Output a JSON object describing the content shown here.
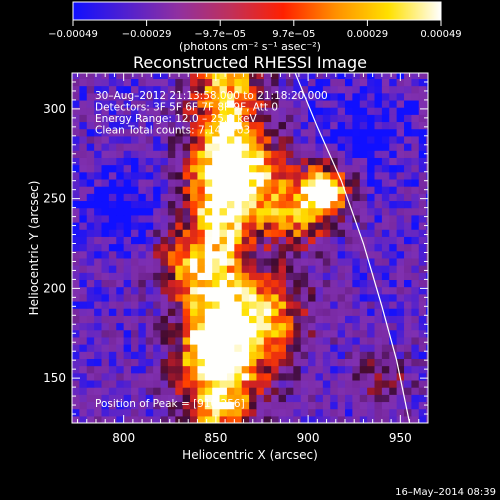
{
  "colorbar": {
    "ticks": [
      "−0.00049",
      "−0.00029",
      "−9.7e−05",
      "9.7e−05",
      "0.00029",
      "0.00049"
    ],
    "unit_label": "(photons cm⁻² s⁻¹ asec⁻²)",
    "colors": [
      "#1010ff",
      "#5020d0",
      "#9030a0",
      "#c0305a",
      "#ff2000",
      "#ff9000",
      "#ffe000",
      "#ffffff"
    ]
  },
  "chart_data": {
    "type": "heatmap",
    "title": "Reconstructed RHESSI Image",
    "xlabel": "Heliocentric X (arcsec)",
    "ylabel": "Heliocentric Y (arcsec)",
    "xlim": [
      772,
      965
    ],
    "ylim": [
      125,
      320
    ],
    "x_ticks": [
      800,
      850,
      900,
      950
    ],
    "y_ticks": [
      150,
      200,
      250,
      300
    ],
    "colorbar_range": [
      -0.00049,
      0.00049
    ],
    "annotations": [
      "30–Aug–2012 21:13:58.000 to 21:18:20.000",
      "Detectors: 3F 5F 6F 7F 8F 9F, Att 0",
      "Energy Range: 12.0 – 25.0 keV",
      "Clean     Total counts: 7.14E+03"
    ],
    "peak_label": "Position of Peak = [910,256]",
    "peak": [
      910,
      256
    ],
    "limb_curve": [
      [
        893,
        320
      ],
      [
        905,
        290
      ],
      [
        918,
        260
      ],
      [
        930,
        225
      ],
      [
        940,
        190
      ],
      [
        948,
        160
      ],
      [
        955,
        125
      ]
    ]
  },
  "timestamp": "16–May–2014 08:39"
}
